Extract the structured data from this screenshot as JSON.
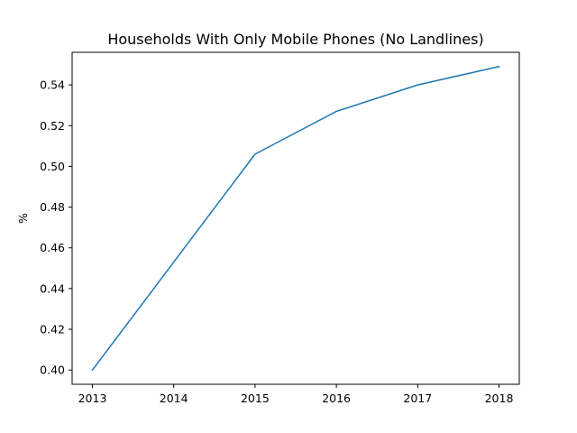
{
  "chart_data": {
    "type": "line",
    "title": "Households With Only Mobile Phones (No Landlines)",
    "xlabel": "",
    "ylabel": "%",
    "x": [
      "2013",
      "2014",
      "2015",
      "2016",
      "2017",
      "2018"
    ],
    "series": [
      {
        "values": [
          0.4,
          0.453,
          0.506,
          0.527,
          0.54,
          0.549
        ],
        "color": "#1f77b4"
      }
    ],
    "ylim": [
      0.393,
      0.556
    ],
    "yticks": [
      "0.40",
      "0.42",
      "0.44",
      "0.46",
      "0.48",
      "0.50",
      "0.52",
      "0.54"
    ],
    "grid": false,
    "legend": false
  }
}
